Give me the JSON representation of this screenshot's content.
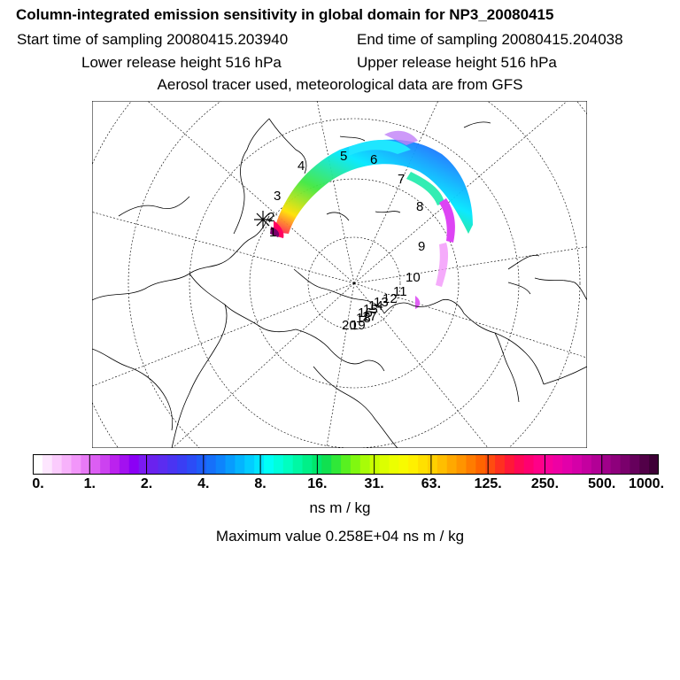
{
  "header": {
    "title": "Column-integrated emission sensitivity in global domain for NP3_20080415",
    "start_time": "Start time of sampling 20080415.203940",
    "end_time": "End time of sampling 20080415.204038",
    "lower_height": "Lower release height  516 hPa",
    "upper_height": "Upper release height  516 hPa",
    "tracer_info": "Aerosol tracer used, meteorological data are from GFS"
  },
  "map": {
    "projection": "polar-stereographic",
    "trajectory_labels": [
      "1",
      "2",
      "3",
      "4",
      "5",
      "6",
      "7",
      "8",
      "9",
      "10",
      "11",
      "12",
      "13",
      "14",
      "15",
      "16",
      "17",
      "18",
      "19",
      "20"
    ],
    "colors": {
      "coast": "#000000",
      "grid": "#000000"
    }
  },
  "colorbar": {
    "tick_labels": [
      "0.",
      "1.",
      "2.",
      "4.",
      "8.",
      "16.",
      "31.",
      "63.",
      "125.",
      "250.",
      "500.",
      "1000."
    ],
    "colors": [
      "#ffffff",
      "#fde6fe",
      "#fbccfd",
      "#f7b2fb",
      "#f296fa",
      "#e87af6",
      "#dc5ef3",
      "#cc42f0",
      "#bb22ee",
      "#a311f0",
      "#8b00f5",
      "#7a1af2",
      "#6a22ee",
      "#5b2cf0",
      "#4a34f2",
      "#3a3ef4",
      "#2c4cf6",
      "#1f5cf8",
      "#1670fa",
      "#0e84fc",
      "#089cfd",
      "#04b4fe",
      "#02ccff",
      "#00e4ff",
      "#00fff6",
      "#00ffdc",
      "#00ffc0",
      "#00f8a4",
      "#00f088",
      "#00e86c",
      "#10e050",
      "#30e838",
      "#58f020",
      "#80f810",
      "#a8fc08",
      "#c8ff00",
      "#dcff00",
      "#ecff00",
      "#f8fb00",
      "#fff000",
      "#ffe000",
      "#ffd000",
      "#ffbe00",
      "#ffa800",
      "#ff9400",
      "#ff7c00",
      "#ff6400",
      "#ff4c10",
      "#ff3020",
      "#ff1838",
      "#ff0856",
      "#ff0070",
      "#ff0088",
      "#f8009a",
      "#ee00a4",
      "#e200aa",
      "#d400a8",
      "#c400a0",
      "#b20096",
      "#a0008a",
      "#8e007c",
      "#7a006c",
      "#66005c",
      "#520048",
      "#3e0036"
    ],
    "units": "ns m / kg",
    "max_value": "Maximum value  0.258E+04 ns m / kg"
  }
}
